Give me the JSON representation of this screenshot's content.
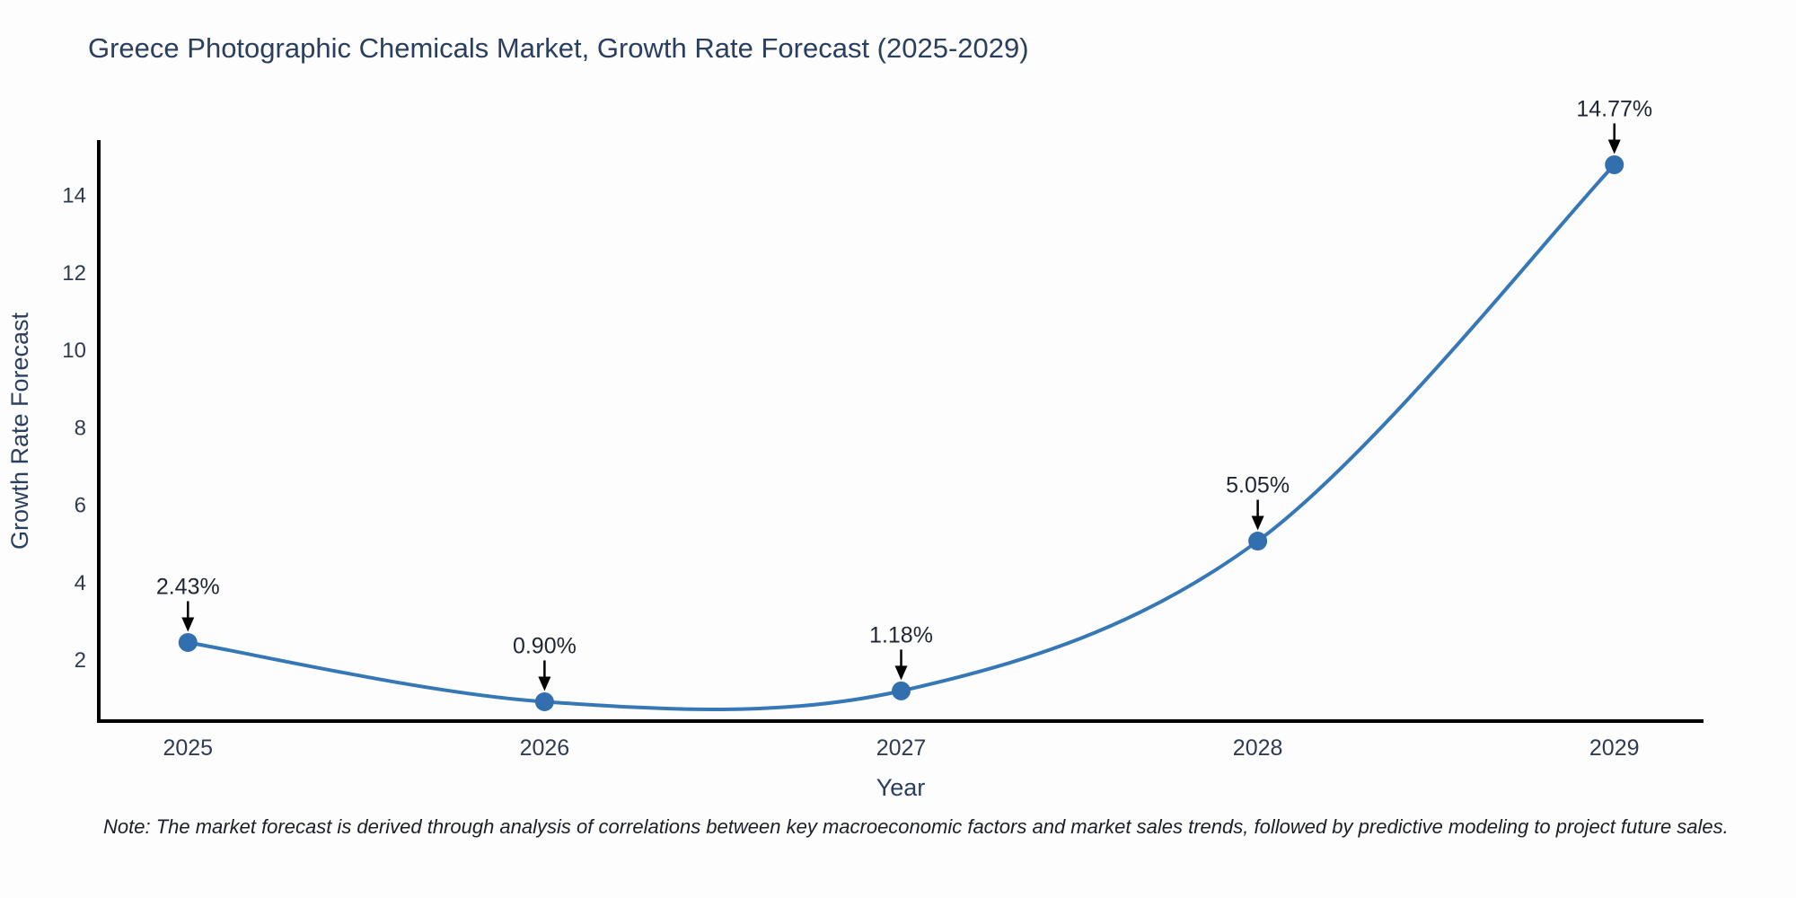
{
  "title": "Greece Photographic Chemicals Market, Growth Rate Forecast (2025-2029)",
  "note": "Note: The market forecast is derived through analysis of correlations between key macroeconomic factors and market sales trends, followed by predictive modeling to project future sales.",
  "chart_data": {
    "type": "line",
    "title": "Greece Photographic Chemicals Market, Growth Rate Forecast (2025-2029)",
    "xlabel": "Year",
    "ylabel": "Growth Rate Forecast",
    "x": [
      2025,
      2026,
      2027,
      2028,
      2029
    ],
    "series": [
      {
        "name": "Growth Rate Forecast",
        "values": [
          2.43,
          0.9,
          1.18,
          5.05,
          14.77
        ]
      }
    ],
    "point_labels": [
      "2.43%",
      "0.90%",
      "1.18%",
      "5.05%",
      "14.77%"
    ],
    "yticks": [
      2,
      4,
      6,
      8,
      10,
      12,
      14
    ],
    "xlim": [
      2024.75,
      2029.25
    ],
    "ylim": [
      0.4,
      15.36
    ],
    "grid": false,
    "legend": false,
    "line_color": "#3578b5",
    "marker_color": "#326fae",
    "annotation_arrow_color": "#000000",
    "axis_color": "#000000",
    "title_color": "#2a3f5f",
    "tick_color": "#2f3b52",
    "background_color": "#fdfdfd"
  }
}
